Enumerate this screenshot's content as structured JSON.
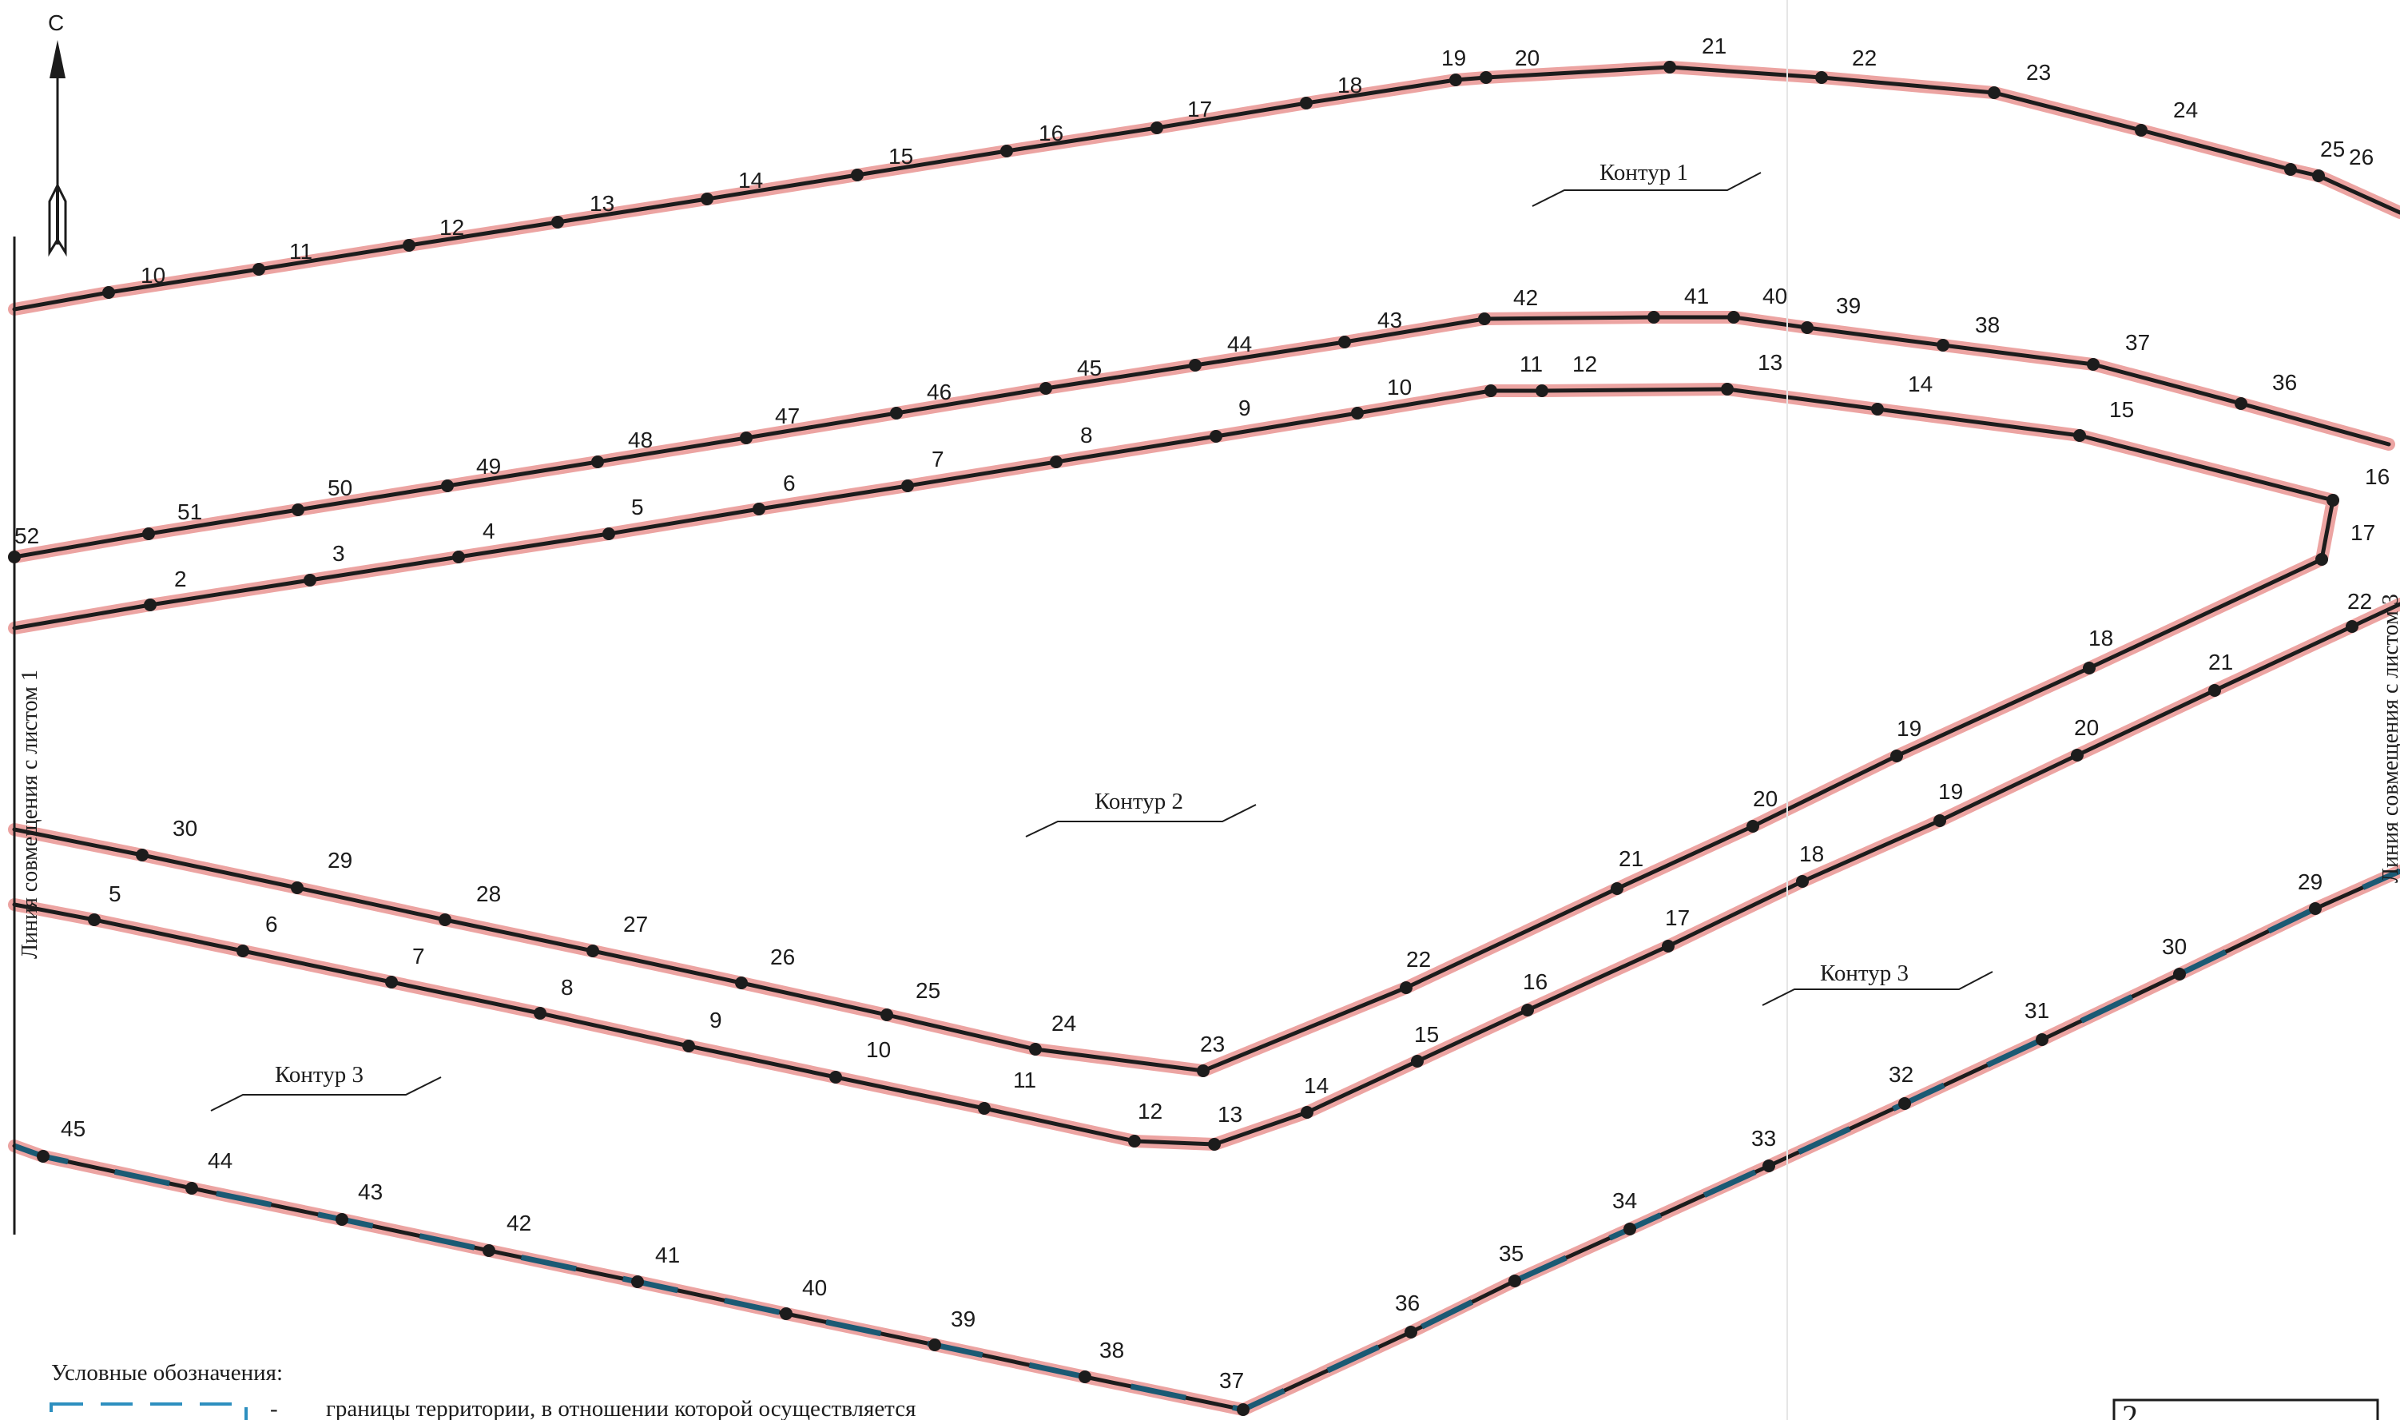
{
  "north": {
    "label": "С"
  },
  "side_labels": {
    "left": "Линия совмещения с листом 1",
    "right": "Линия совмещения с листом 3"
  },
  "contour_labels": [
    "Контур 1",
    "Контур 2",
    "Контур 3",
    "Контур 3"
  ],
  "legend": {
    "title": "Условные обозначения:",
    "dash": "-",
    "text": "границы территории, в отношении которой осуществляется"
  },
  "sheet_number": "2",
  "colors": {
    "boundary_halo": "#eca4a2",
    "boundary_line": "#1c1c1c",
    "territory_dash": "#1b5a74"
  },
  "boundaries": [
    {
      "name": "contour-1-upper",
      "labels": [
        "10",
        "11",
        "12",
        "13",
        "14",
        "15",
        "16",
        "17",
        "18",
        "19",
        "20",
        "21",
        "22",
        "23",
        "24",
        "25",
        "26"
      ]
    },
    {
      "name": "contour-1-lower",
      "labels": [
        "52",
        "51",
        "50",
        "49",
        "48",
        "47",
        "46",
        "45",
        "44",
        "43",
        "42",
        "41",
        "40",
        "39",
        "38",
        "37",
        "36"
      ]
    },
    {
      "name": "contour-2-outer",
      "labels": [
        "2",
        "3",
        "4",
        "5",
        "6",
        "7",
        "8",
        "9",
        "10",
        "11",
        "12",
        "13",
        "14",
        "15",
        "16",
        "17",
        "18",
        "19",
        "20",
        "21",
        "22",
        "23",
        "24",
        "25",
        "26",
        "27",
        "28",
        "29",
        "30"
      ]
    },
    {
      "name": "contour-3-upper",
      "labels": [
        "5",
        "6",
        "7",
        "8",
        "9",
        "10",
        "11",
        "12",
        "13",
        "14",
        "15",
        "16",
        "17",
        "18",
        "19",
        "20",
        "21",
        "22"
      ]
    },
    {
      "name": "contour-3-lower",
      "labels": [
        "45",
        "44",
        "43",
        "42",
        "41",
        "40",
        "39",
        "38",
        "37",
        "36",
        "35",
        "34",
        "33",
        "32",
        "31",
        "30",
        "29"
      ]
    }
  ]
}
